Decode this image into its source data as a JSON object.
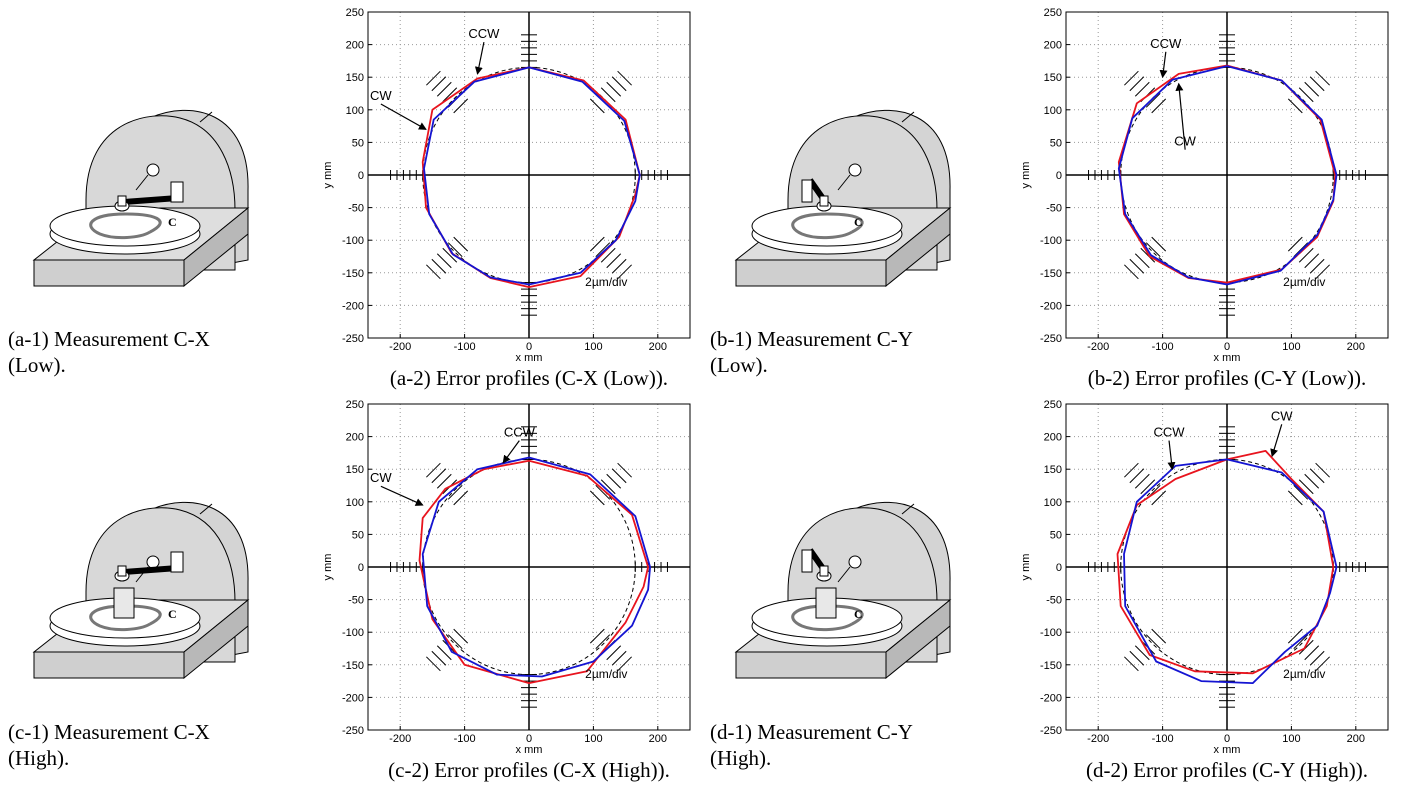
{
  "chart_data": [
    {
      "type": "line",
      "caption": "(a-2) Error profiles (C-X (Low)).",
      "xlabel": "x mm",
      "ylabel": "y mm",
      "xlim": [
        -250,
        250
      ],
      "ylim": [
        -250,
        250
      ],
      "xticks": [
        -200,
        -100,
        0,
        100,
        200
      ],
      "yticks": [
        -250,
        -200,
        -150,
        -100,
        -50,
        0,
        50,
        100,
        150,
        200,
        250
      ],
      "grid": true,
      "reference_radius": 165,
      "annotation": "2µm/div",
      "series": [
        {
          "name": "CW",
          "color": "#e8141e",
          "x": [
            172,
            150,
            85,
            0,
            -80,
            -150,
            -165,
            -160,
            -120,
            -60,
            0,
            80,
            140,
            165
          ],
          "values": [
            0,
            85,
            145,
            165,
            148,
            100,
            20,
            -50,
            -120,
            -158,
            -172,
            -155,
            -95,
            -30
          ]
        },
        {
          "name": "CCW",
          "color": "#1414d2",
          "x": [
            172,
            148,
            83,
            0,
            -85,
            -148,
            -163,
            -155,
            -118,
            -60,
            0,
            80,
            135,
            165
          ],
          "values": [
            0,
            83,
            143,
            165,
            143,
            85,
            10,
            -60,
            -122,
            -157,
            -168,
            -150,
            -100,
            -40
          ]
        }
      ]
    },
    {
      "type": "line",
      "caption": "(b-2) Error profiles (C-Y (Low)).",
      "xlabel": "x mm",
      "ylabel": "y mm",
      "xlim": [
        -250,
        250
      ],
      "ylim": [
        -250,
        250
      ],
      "xticks": [
        -200,
        -100,
        0,
        100,
        200
      ],
      "yticks": [
        -250,
        -200,
        -150,
        -100,
        -50,
        0,
        50,
        100,
        150,
        200,
        250
      ],
      "grid": true,
      "reference_radius": 165,
      "annotation": "2µm/div",
      "series": [
        {
          "name": "CW",
          "color": "#e8141e",
          "x": [
            168,
            145,
            85,
            0,
            -75,
            -140,
            -168,
            -160,
            -120,
            -60,
            0,
            85,
            140,
            165
          ],
          "values": [
            0,
            85,
            145,
            168,
            155,
            110,
            20,
            -60,
            -125,
            -158,
            -165,
            -145,
            -95,
            -40
          ]
        },
        {
          "name": "CCW",
          "color": "#1414d2",
          "x": [
            170,
            147,
            85,
            0,
            -85,
            -147,
            -168,
            -158,
            -118,
            -60,
            0,
            83,
            140,
            165
          ],
          "values": [
            0,
            85,
            145,
            167,
            146,
            87,
            10,
            -60,
            -123,
            -157,
            -168,
            -147,
            -92,
            -38
          ]
        }
      ]
    },
    {
      "type": "line",
      "caption": "(c-2) Error profiles (C-X (High)).",
      "xlabel": "x mm",
      "ylabel": "y mm",
      "xlim": [
        -250,
        250
      ],
      "ylim": [
        -250,
        250
      ],
      "xticks": [
        -200,
        -100,
        0,
        100,
        200
      ],
      "yticks": [
        -250,
        -200,
        -150,
        -100,
        -50,
        0,
        50,
        100,
        150,
        200,
        250
      ],
      "grid": true,
      "reference_radius": 165,
      "annotation": "2µm/div",
      "series": [
        {
          "name": "CW",
          "color": "#e8141e",
          "x": [
            185,
            160,
            90,
            0,
            -70,
            -130,
            -165,
            -170,
            -150,
            -100,
            0,
            90,
            150,
            178
          ],
          "values": [
            0,
            80,
            140,
            163,
            150,
            120,
            75,
            10,
            -80,
            -150,
            -178,
            -160,
            -85,
            -30
          ]
        },
        {
          "name": "CCW",
          "color": "#1414d2",
          "x": [
            188,
            165,
            95,
            0,
            -80,
            -140,
            -165,
            -158,
            -120,
            -50,
            20,
            100,
            160,
            185
          ],
          "values": [
            0,
            78,
            142,
            168,
            150,
            100,
            20,
            -60,
            -130,
            -165,
            -168,
            -145,
            -90,
            -35
          ]
        }
      ]
    },
    {
      "type": "line",
      "caption": "(d-2) Error profiles (C-Y (High)).",
      "xlabel": "x mm",
      "ylabel": "y mm",
      "xlim": [
        -250,
        250
      ],
      "ylim": [
        -250,
        250
      ],
      "xticks": [
        -200,
        -100,
        0,
        100,
        200
      ],
      "yticks": [
        -250,
        -200,
        -150,
        -100,
        -50,
        0,
        50,
        100,
        150,
        200,
        250
      ],
      "grid": true,
      "reference_radius": 165,
      "annotation": "2µm/div",
      "series": [
        {
          "name": "CW",
          "color": "#e8141e",
          "x": [
            165,
            150,
            100,
            60,
            0,
            -80,
            -140,
            -170,
            -165,
            -120,
            -50,
            40,
            120,
            155
          ],
          "values": [
            0,
            85,
            135,
            178,
            165,
            135,
            95,
            20,
            -60,
            -135,
            -160,
            -163,
            -125,
            -60
          ]
        },
        {
          "name": "CCW",
          "color": "#1414d2",
          "x": [
            170,
            150,
            85,
            0,
            -80,
            -140,
            -160,
            -158,
            -110,
            -40,
            40,
            90,
            140,
            160
          ],
          "values": [
            0,
            85,
            145,
            165,
            155,
            100,
            20,
            -60,
            -145,
            -175,
            -178,
            -130,
            -90,
            -40
          ]
        }
      ]
    }
  ],
  "illustrations": [
    {
      "caption": "(a-1) Measurement C-X (Low)."
    },
    {
      "caption": "(b-1) Measurement C-Y (Low)."
    },
    {
      "caption": "(c-1) Measurement C-X (High)."
    },
    {
      "caption": "(d-1) Measurement C-Y (High)."
    }
  ]
}
